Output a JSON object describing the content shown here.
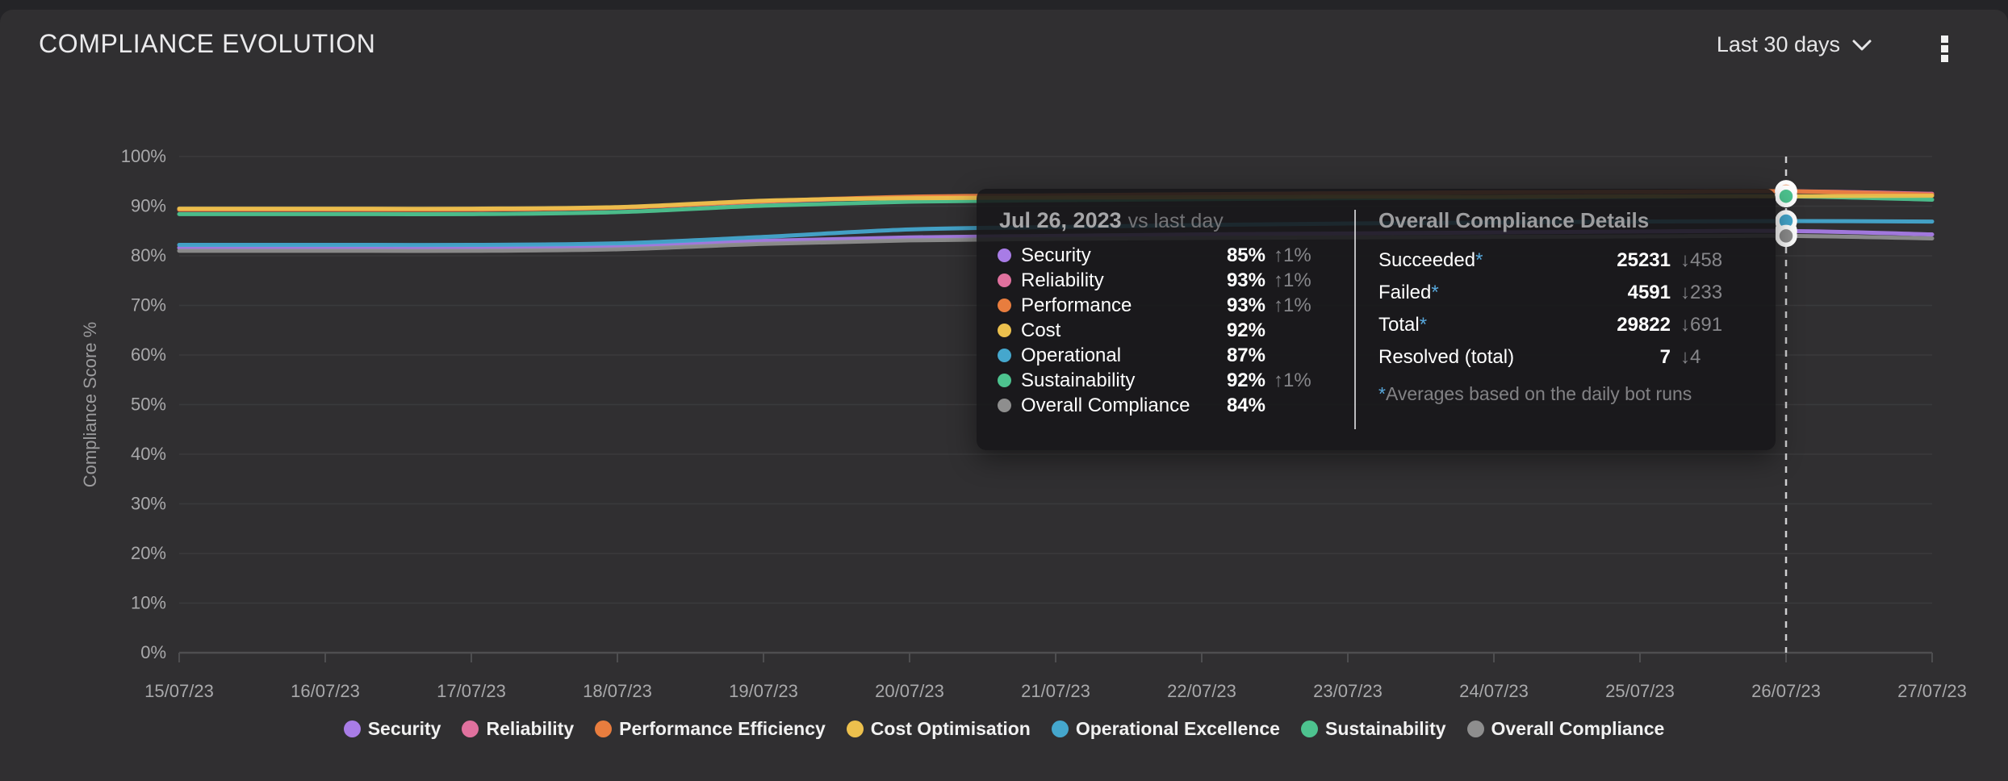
{
  "header": {
    "title": "COMPLIANCE EVOLUTION",
    "range_label": "Last 30 days"
  },
  "chart_data": {
    "type": "line",
    "title": "COMPLIANCE EVOLUTION",
    "xlabel": "",
    "ylabel": "Compliance Score %",
    "ylim": [
      0,
      100
    ],
    "y_ticks": [
      "0%",
      "10%",
      "20%",
      "30%",
      "40%",
      "50%",
      "60%",
      "70%",
      "80%",
      "90%",
      "100%"
    ],
    "grid": true,
    "legend_position": "bottom",
    "highlight_x": "26/07/23",
    "x": [
      "15/07/23",
      "16/07/23",
      "17/07/23",
      "18/07/23",
      "19/07/23",
      "20/07/23",
      "21/07/23",
      "22/07/23",
      "23/07/23",
      "24/07/23",
      "25/07/23",
      "26/07/23",
      "27/07/23"
    ],
    "series": [
      {
        "name": "Security",
        "color": "#a87ce6",
        "values": [
          81.6,
          81.6,
          81.6,
          81.9,
          83.0,
          83.7,
          84.0,
          84.3,
          84.5,
          84.7,
          84.9,
          85.0,
          84.3
        ]
      },
      {
        "name": "Reliability",
        "color": "#e0719e",
        "values": [
          89.3,
          89.3,
          89.3,
          89.7,
          90.9,
          91.8,
          92.1,
          92.4,
          92.6,
          92.8,
          92.9,
          93.0,
          92.5
        ]
      },
      {
        "name": "Performance Efficiency",
        "color": "#e87d3e",
        "values": [
          89.3,
          89.3,
          89.3,
          89.7,
          91.0,
          91.9,
          92.2,
          92.4,
          92.6,
          92.8,
          92.9,
          93.0,
          92.3
        ]
      },
      {
        "name": "Cost Optimisation",
        "color": "#ecc04d",
        "values": [
          89.5,
          89.5,
          89.5,
          89.8,
          91.1,
          91.6,
          91.7,
          91.8,
          91.9,
          91.9,
          92.0,
          92.0,
          92.1
        ]
      },
      {
        "name": "Operational Excellence",
        "color": "#45a7cd",
        "values": [
          82.2,
          82.2,
          82.2,
          82.5,
          83.8,
          85.3,
          85.8,
          86.2,
          86.5,
          86.7,
          86.9,
          87.0,
          86.9
        ]
      },
      {
        "name": "Sustainability",
        "color": "#4dc38f",
        "values": [
          88.4,
          88.4,
          88.4,
          88.8,
          90.1,
          90.9,
          91.2,
          91.4,
          91.6,
          91.7,
          91.9,
          92.0,
          91.3
        ]
      },
      {
        "name": "Overall Compliance",
        "color": "#8e8e8e",
        "values": [
          81.0,
          81.0,
          81.0,
          81.3,
          82.4,
          83.1,
          83.4,
          83.6,
          83.7,
          83.8,
          83.9,
          84.0,
          83.5
        ]
      }
    ]
  },
  "tooltip": {
    "date": "Jul 26, 2023",
    "compare_label": "vs last day",
    "rows": [
      {
        "label": "Security",
        "color": "#a87ce6",
        "value": "85%",
        "change": "↑1%"
      },
      {
        "label": "Reliability",
        "color": "#e0719e",
        "value": "93%",
        "change": "↑1%"
      },
      {
        "label": "Performance",
        "color": "#e87d3e",
        "value": "93%",
        "change": "↑1%"
      },
      {
        "label": "Cost",
        "color": "#ecc04d",
        "value": "92%",
        "change": ""
      },
      {
        "label": "Operational",
        "color": "#45a7cd",
        "value": "87%",
        "change": ""
      },
      {
        "label": "Sustainability",
        "color": "#4dc38f",
        "value": "92%",
        "change": "↑1%"
      },
      {
        "label": "Overall Compliance",
        "color": "#8e8e8e",
        "value": "84%",
        "change": ""
      }
    ],
    "details": {
      "title": "Overall Compliance Details",
      "rows": [
        {
          "label": "Succeeded",
          "asterisk": "*",
          "value": "25231",
          "change": "↓458"
        },
        {
          "label": "Failed",
          "asterisk": "*",
          "value": "4591",
          "change": "↓233"
        },
        {
          "label": "Total",
          "asterisk": "*",
          "value": "29822",
          "change": "↓691"
        },
        {
          "label": "Resolved (total)",
          "asterisk": "",
          "value": "7",
          "change": "↓4"
        }
      ],
      "footnote_marker": "*",
      "footnote": "Averages based on the daily bot runs"
    }
  },
  "colors": {
    "card_bg": "#302f31",
    "page_bg": "#242427",
    "grid": "#3a3a3c",
    "axis": "#4e4e50",
    "tick_text": "#a9a9ab",
    "marker_line": "#cfcfd1",
    "asterisk_blue": "#58a8dc"
  }
}
